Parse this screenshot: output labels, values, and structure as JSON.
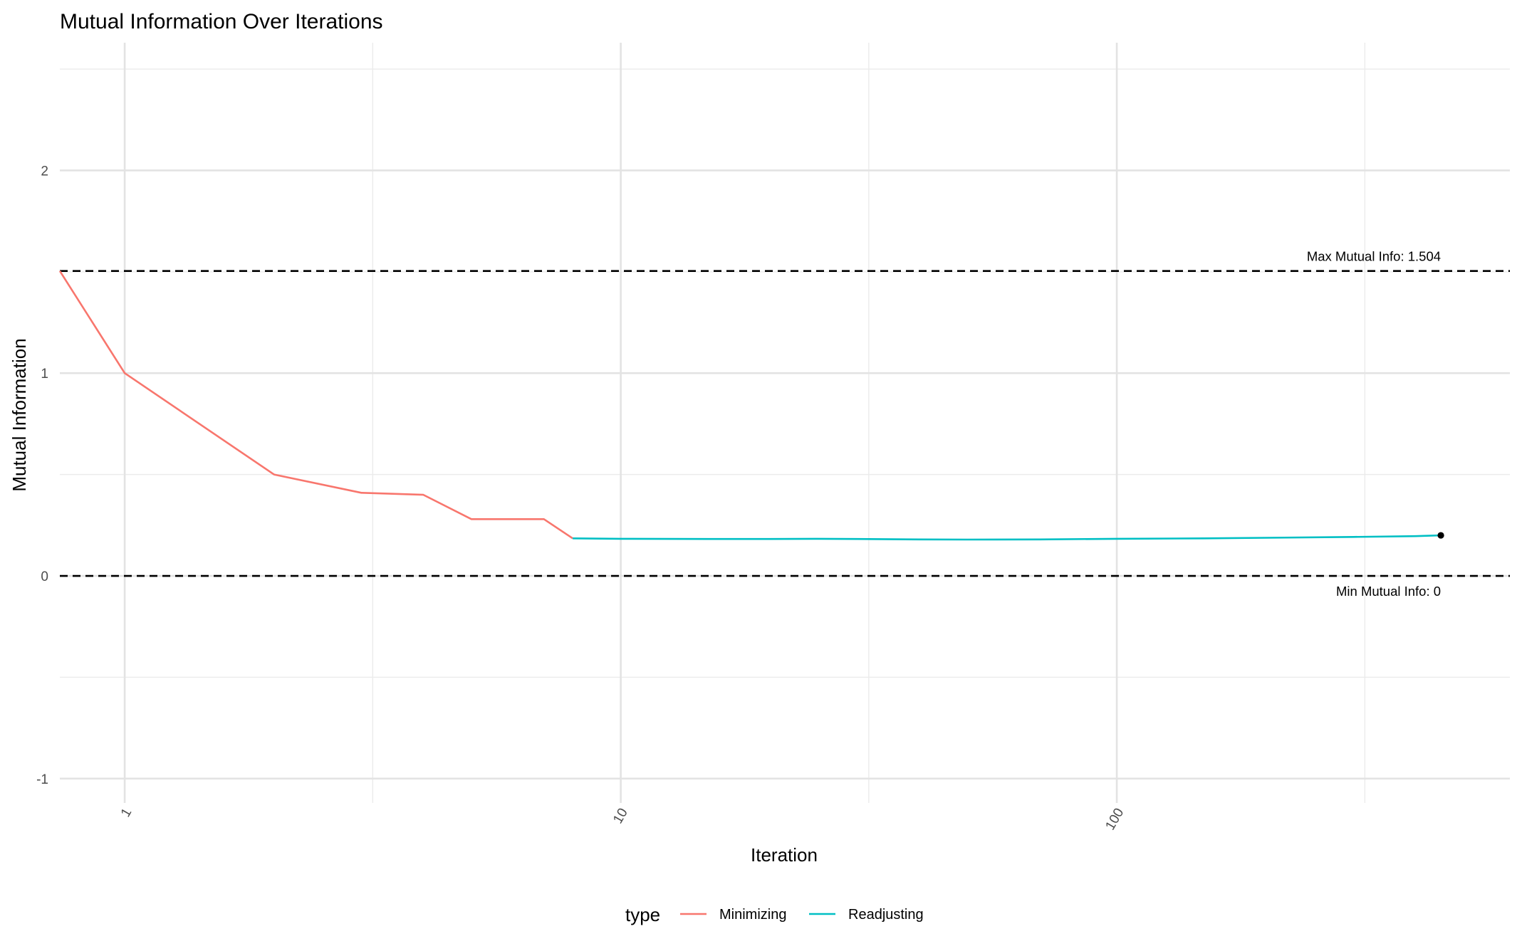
{
  "chart_data": {
    "type": "line",
    "title": "Mutual Information Over Iterations",
    "xlabel": "Iteration",
    "ylabel": "Mutual Information",
    "x_scale": "log10",
    "xlim": [
      0.74,
      620
    ],
    "ylim": [
      -1.12,
      2.63
    ],
    "x_ticks": [
      1,
      10,
      100
    ],
    "x_tick_labels": [
      "1",
      "10",
      "100"
    ],
    "y_ticks": [
      -1,
      0,
      1,
      2
    ],
    "y_tick_labels": [
      "-1",
      "0",
      "1",
      "2"
    ],
    "grid": true,
    "legend": {
      "title": "type",
      "position": "bottom",
      "entries": [
        {
          "label": "Minimizing",
          "color": "#f8766d"
        },
        {
          "label": "Readjusting",
          "color": "#00bfc4"
        }
      ]
    },
    "series": [
      {
        "name": "Minimizing",
        "color": "#f8766d",
        "x": [
          0.74,
          1,
          2,
          3,
          4,
          5,
          7,
          8
        ],
        "y": [
          1.504,
          1.0,
          0.5,
          0.41,
          0.4,
          0.28,
          0.28,
          0.185
        ]
      },
      {
        "name": "Readjusting",
        "color": "#00bfc4",
        "x": [
          8,
          10,
          15,
          20,
          25,
          30,
          40,
          50,
          70,
          100,
          150,
          200,
          300,
          400,
          450
        ],
        "y": [
          0.185,
          0.183,
          0.182,
          0.182,
          0.183,
          0.182,
          0.18,
          0.179,
          0.18,
          0.183,
          0.185,
          0.188,
          0.192,
          0.196,
          0.2
        ]
      }
    ],
    "hlines": [
      {
        "y": 1.504,
        "label": "Max Mutual Info: 1.504",
        "style": "dashed",
        "color": "#000000"
      },
      {
        "y": 0,
        "label": "Min Mutual Info: 0",
        "style": "dashed",
        "color": "#000000"
      }
    ],
    "end_point": {
      "x": 450,
      "y": 0.2
    }
  }
}
